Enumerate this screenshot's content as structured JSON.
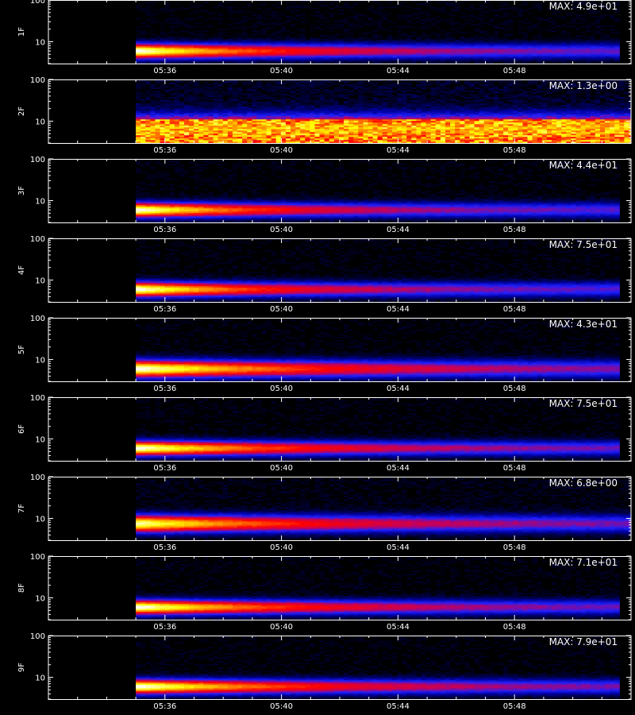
{
  "chart_data": {
    "type": "heatmap",
    "shared_x_axis": {
      "unit": "UT time (hh:mm)",
      "range_minutes": [
        32.0,
        52.0
      ],
      "ticks": [
        {
          "minute": 36,
          "label": "05:36"
        },
        {
          "minute": 40,
          "label": "05:40"
        },
        {
          "minute": 44,
          "label": "05:44"
        },
        {
          "minute": 48,
          "label": "05:48"
        }
      ]
    },
    "data_start_minute": 35.0,
    "data_end_minute": 51.6,
    "y_scale": "log",
    "y_range": [
      3,
      100
    ],
    "y_ticks": [
      {
        "value": 10,
        "label": "10"
      },
      {
        "value": 100,
        "label": "100"
      }
    ],
    "colormap": [
      "#000000",
      "#0000a0",
      "#2020ff",
      "#c00060",
      "#ff0000",
      "#ff8000",
      "#ffff00",
      "#ffffff"
    ],
    "panels": [
      {
        "ylabel": "1F",
        "max_label": "MAX: 4.9e+01",
        "band_center": 6.0,
        "band_width_decades": 0.12,
        "peak_intensity": 1.0,
        "decay_minutes": 5.5,
        "background": 0.02,
        "extends_right": false
      },
      {
        "ylabel": "2F",
        "max_label": "MAX: 1.3e+00",
        "band_center": 6.5,
        "band_width_decades": 0.22,
        "peak_intensity": 0.85,
        "decay_minutes": 0,
        "background": 0.06,
        "extends_right": true
      },
      {
        "ylabel": "3F",
        "max_label": "MAX: 4.4e+01",
        "band_center": 6.0,
        "band_width_decades": 0.12,
        "peak_intensity": 1.0,
        "decay_minutes": 5.0,
        "background": 0.02,
        "extends_right": false
      },
      {
        "ylabel": "4F",
        "max_label": "MAX: 7.5e+01",
        "band_center": 6.0,
        "band_width_decades": 0.12,
        "peak_intensity": 1.0,
        "decay_minutes": 5.0,
        "background": 0.02,
        "extends_right": false
      },
      {
        "ylabel": "5F",
        "max_label": "MAX: 4.3e+01",
        "band_center": 6.0,
        "band_width_decades": 0.14,
        "peak_intensity": 1.0,
        "decay_minutes": 7.0,
        "background": 0.02,
        "extends_right": false
      },
      {
        "ylabel": "6F",
        "max_label": "MAX: 7.5e+01",
        "band_center": 6.0,
        "band_width_decades": 0.12,
        "peak_intensity": 1.0,
        "decay_minutes": 6.0,
        "background": 0.02,
        "extends_right": false
      },
      {
        "ylabel": "7F",
        "max_label": "MAX: 6.8e+00",
        "band_center": 7.5,
        "band_width_decades": 0.14,
        "peak_intensity": 0.95,
        "decay_minutes": 6.5,
        "background": 0.03,
        "extends_right": true
      },
      {
        "ylabel": "8F",
        "max_label": "MAX: 7.1e+01",
        "band_center": 6.0,
        "band_width_decades": 0.12,
        "peak_intensity": 1.0,
        "decay_minutes": 6.0,
        "background": 0.02,
        "extends_right": false
      },
      {
        "ylabel": "9F",
        "max_label": "MAX: 7.9e+01",
        "band_center": 6.0,
        "band_width_decades": 0.12,
        "peak_intensity": 1.0,
        "decay_minutes": 6.5,
        "background": 0.02,
        "extends_right": false
      }
    ]
  }
}
